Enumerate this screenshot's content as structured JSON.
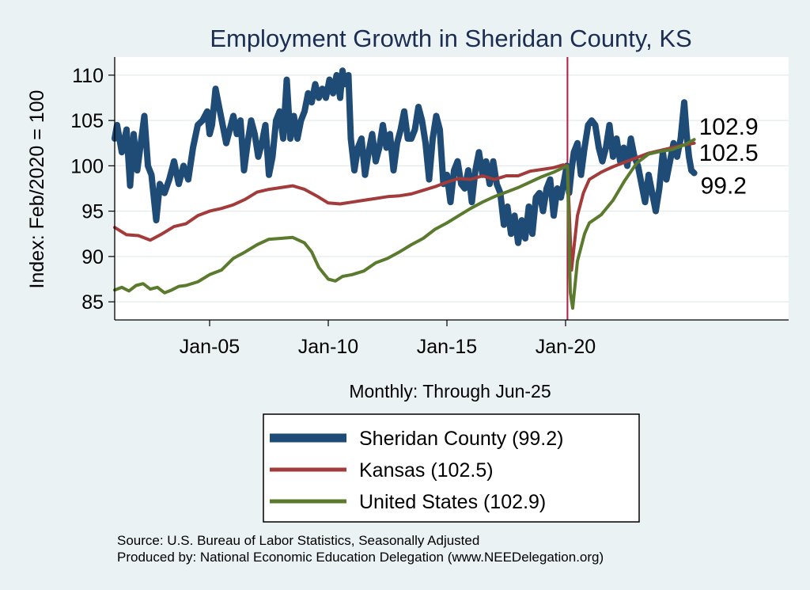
{
  "chart_data": {
    "type": "line",
    "title": "Employment Growth in Sheridan  County, KS",
    "ylabel": "Index: Feb/2020 = 100",
    "xlabel": "Monthly: Through Jun-25",
    "ylim": [
      83,
      112
    ],
    "xlim": [
      2001.0,
      2029.4
    ],
    "yticks": [
      85,
      90,
      95,
      100,
      105,
      110
    ],
    "yticklabels": [
      "85",
      "90",
      "95",
      "100",
      "105",
      "110"
    ],
    "xticks": [
      2005.0,
      2010.0,
      2015.0,
      2020.0
    ],
    "xticklabels": [
      "Jan-05",
      "Jan-10",
      "Jan-15",
      "Jan-20"
    ],
    "reference_line_x": 2020.08,
    "grid": true,
    "series": [
      {
        "name": "Sheridan  County",
        "legend_label": "Sheridan  County (99.2)",
        "color": "#1f4b77",
        "end_label": "99.2",
        "points": [
          [
            2001.0,
            103.0
          ],
          [
            2001.1,
            104.5
          ],
          [
            2001.3,
            101.5
          ],
          [
            2001.5,
            104.0
          ],
          [
            2001.65,
            97.8
          ],
          [
            2001.8,
            103.5
          ],
          [
            2001.95,
            99.5
          ],
          [
            2002.1,
            102.5
          ],
          [
            2002.25,
            105.5
          ],
          [
            2002.4,
            100.0
          ],
          [
            2002.55,
            99.0
          ],
          [
            2002.75,
            94.0
          ],
          [
            2002.9,
            98.0
          ],
          [
            2003.1,
            97.0
          ],
          [
            2003.3,
            98.5
          ],
          [
            2003.5,
            100.5
          ],
          [
            2003.7,
            98.0
          ],
          [
            2003.9,
            100.0
          ],
          [
            2004.1,
            98.5
          ],
          [
            2004.3,
            102.0
          ],
          [
            2004.5,
            104.5
          ],
          [
            2004.7,
            105.0
          ],
          [
            2004.9,
            106.0
          ],
          [
            2005.0,
            103.5
          ],
          [
            2005.1,
            104.5
          ],
          [
            2005.25,
            108.5
          ],
          [
            2005.4,
            106.5
          ],
          [
            2005.55,
            104.5
          ],
          [
            2005.7,
            102.5
          ],
          [
            2005.85,
            104.0
          ],
          [
            2006.0,
            105.5
          ],
          [
            2006.15,
            103.5
          ],
          [
            2006.3,
            105.0
          ],
          [
            2006.45,
            99.5
          ],
          [
            2006.6,
            102.5
          ],
          [
            2006.75,
            105.0
          ],
          [
            2006.9,
            103.5
          ],
          [
            2007.05,
            101.0
          ],
          [
            2007.2,
            102.5
          ],
          [
            2007.35,
            104.5
          ],
          [
            2007.5,
            99.0
          ],
          [
            2007.65,
            101.0
          ],
          [
            2007.8,
            105.0
          ],
          [
            2007.95,
            106.0
          ],
          [
            2008.1,
            103.0
          ],
          [
            2008.25,
            109.5
          ],
          [
            2008.4,
            103.0
          ],
          [
            2008.55,
            105.5
          ],
          [
            2008.7,
            103.0
          ],
          [
            2008.85,
            105.0
          ],
          [
            2009.0,
            106.0
          ],
          [
            2009.15,
            108.0
          ],
          [
            2009.3,
            107.0
          ],
          [
            2009.45,
            109.0
          ],
          [
            2009.6,
            107.5
          ],
          [
            2009.75,
            108.5
          ],
          [
            2009.9,
            107.5
          ],
          [
            2010.05,
            109.5
          ],
          [
            2010.2,
            108.0
          ],
          [
            2010.35,
            110.0
          ],
          [
            2010.5,
            107.5
          ],
          [
            2010.6,
            110.5
          ],
          [
            2010.7,
            109.0
          ],
          [
            2010.85,
            110.0
          ],
          [
            2010.95,
            103.0
          ],
          [
            2011.1,
            99.5
          ],
          [
            2011.25,
            102.0
          ],
          [
            2011.4,
            103.0
          ],
          [
            2011.55,
            99.0
          ],
          [
            2011.7,
            101.5
          ],
          [
            2011.85,
            103.5
          ],
          [
            2012.0,
            100.5
          ],
          [
            2012.15,
            102.0
          ],
          [
            2012.3,
            104.5
          ],
          [
            2012.45,
            102.0
          ],
          [
            2012.6,
            103.5
          ],
          [
            2012.75,
            99.5
          ],
          [
            2012.9,
            102.5
          ],
          [
            2013.05,
            104.0
          ],
          [
            2013.2,
            106.0
          ],
          [
            2013.35,
            103.0
          ],
          [
            2013.5,
            103.0
          ],
          [
            2013.65,
            104.0
          ],
          [
            2013.8,
            106.5
          ],
          [
            2013.95,
            105.0
          ],
          [
            2014.1,
            102.5
          ],
          [
            2014.25,
            98.5
          ],
          [
            2014.4,
            103.0
          ],
          [
            2014.55,
            105.5
          ],
          [
            2014.7,
            104.0
          ],
          [
            2014.85,
            98.0
          ],
          [
            2015.0,
            99.0
          ],
          [
            2015.15,
            96.0
          ],
          [
            2015.3,
            99.5
          ],
          [
            2015.45,
            100.5
          ],
          [
            2015.6,
            98.0
          ],
          [
            2015.75,
            97.5
          ],
          [
            2015.9,
            99.5
          ],
          [
            2016.05,
            96.0
          ],
          [
            2016.2,
            99.5
          ],
          [
            2016.35,
            101.5
          ],
          [
            2016.5,
            99.0
          ],
          [
            2016.65,
            100.5
          ],
          [
            2016.8,
            98.0
          ],
          [
            2016.95,
            100.5
          ],
          [
            2017.1,
            98.0
          ],
          [
            2017.25,
            97.0
          ],
          [
            2017.4,
            93.5
          ],
          [
            2017.55,
            95.5
          ],
          [
            2017.7,
            92.5
          ],
          [
            2017.85,
            94.5
          ],
          [
            2018.0,
            91.5
          ],
          [
            2018.15,
            94.0
          ],
          [
            2018.3,
            92.0
          ],
          [
            2018.45,
            95.5
          ],
          [
            2018.6,
            92.5
          ],
          [
            2018.75,
            96.5
          ],
          [
            2018.9,
            97.0
          ],
          [
            2019.05,
            95.0
          ],
          [
            2019.2,
            97.5
          ],
          [
            2019.35,
            98.5
          ],
          [
            2019.5,
            94.5
          ],
          [
            2019.65,
            97.5
          ],
          [
            2019.8,
            96.5
          ],
          [
            2019.95,
            98.5
          ],
          [
            2020.05,
            100.0
          ],
          [
            2020.15,
            97.0
          ],
          [
            2020.25,
            99.5
          ],
          [
            2020.35,
            101.5
          ],
          [
            2020.5,
            102.5
          ],
          [
            2020.65,
            99.0
          ],
          [
            2020.8,
            102.0
          ],
          [
            2020.95,
            104.5
          ],
          [
            2021.1,
            105.0
          ],
          [
            2021.25,
            104.5
          ],
          [
            2021.4,
            102.0
          ],
          [
            2021.55,
            100.5
          ],
          [
            2021.7,
            102.0
          ],
          [
            2021.85,
            104.5
          ],
          [
            2022.0,
            101.0
          ],
          [
            2022.15,
            103.0
          ],
          [
            2022.3,
            100.5
          ],
          [
            2022.45,
            102.0
          ],
          [
            2022.6,
            100.0
          ],
          [
            2022.75,
            103.0
          ],
          [
            2022.9,
            101.0
          ],
          [
            2023.05,
            100.0
          ],
          [
            2023.2,
            98.0
          ],
          [
            2023.35,
            96.0
          ],
          [
            2023.5,
            99.0
          ],
          [
            2023.65,
            97.0
          ],
          [
            2023.8,
            95.0
          ],
          [
            2023.95,
            97.5
          ],
          [
            2024.1,
            101.5
          ],
          [
            2024.25,
            98.5
          ],
          [
            2024.4,
            100.5
          ],
          [
            2024.55,
            102.5
          ],
          [
            2024.7,
            101.0
          ],
          [
            2024.85,
            103.0
          ],
          [
            2025.0,
            107.0
          ],
          [
            2025.1,
            103.5
          ],
          [
            2025.2,
            101.0
          ],
          [
            2025.3,
            99.5
          ],
          [
            2025.42,
            99.2
          ]
        ]
      },
      {
        "name": "Kansas",
        "legend_label": "Kansas (102.5)",
        "color": "#a33b3b",
        "end_label": "102.5",
        "points": [
          [
            2001.0,
            93.2
          ],
          [
            2001.5,
            92.4
          ],
          [
            2002.0,
            92.3
          ],
          [
            2002.5,
            91.8
          ],
          [
            2003.0,
            92.5
          ],
          [
            2003.5,
            93.3
          ],
          [
            2004.0,
            93.6
          ],
          [
            2004.5,
            94.5
          ],
          [
            2005.0,
            95.0
          ],
          [
            2005.5,
            95.3
          ],
          [
            2006.0,
            95.7
          ],
          [
            2006.5,
            96.3
          ],
          [
            2007.0,
            97.1
          ],
          [
            2007.5,
            97.4
          ],
          [
            2008.0,
            97.6
          ],
          [
            2008.5,
            97.8
          ],
          [
            2009.0,
            97.4
          ],
          [
            2009.5,
            96.7
          ],
          [
            2010.0,
            95.9
          ],
          [
            2010.5,
            95.8
          ],
          [
            2011.0,
            96.0
          ],
          [
            2011.5,
            96.2
          ],
          [
            2012.0,
            96.4
          ],
          [
            2012.5,
            96.6
          ],
          [
            2013.0,
            96.7
          ],
          [
            2013.5,
            96.9
          ],
          [
            2014.0,
            97.3
          ],
          [
            2014.5,
            97.7
          ],
          [
            2015.0,
            98.2
          ],
          [
            2015.5,
            98.6
          ],
          [
            2016.0,
            98.5
          ],
          [
            2016.5,
            98.9
          ],
          [
            2017.0,
            98.5
          ],
          [
            2017.5,
            98.9
          ],
          [
            2018.0,
            98.9
          ],
          [
            2018.5,
            99.4
          ],
          [
            2019.0,
            99.6
          ],
          [
            2019.5,
            99.8
          ],
          [
            2019.9,
            100.1
          ],
          [
            2020.08,
            100.0
          ],
          [
            2020.25,
            88.5
          ],
          [
            2020.5,
            94.5
          ],
          [
            2020.75,
            97.0
          ],
          [
            2021.0,
            98.5
          ],
          [
            2021.5,
            99.3
          ],
          [
            2022.0,
            99.9
          ],
          [
            2022.5,
            100.4
          ],
          [
            2023.0,
            100.9
          ],
          [
            2023.5,
            101.4
          ],
          [
            2024.0,
            101.7
          ],
          [
            2024.5,
            102.0
          ],
          [
            2025.0,
            102.3
          ],
          [
            2025.42,
            102.5
          ]
        ]
      },
      {
        "name": "United States",
        "legend_label": "United States (102.9)",
        "color": "#5a7a2e",
        "end_label": "102.9",
        "points": [
          [
            2001.0,
            86.3
          ],
          [
            2001.3,
            86.6
          ],
          [
            2001.6,
            86.2
          ],
          [
            2001.9,
            86.8
          ],
          [
            2002.2,
            87.0
          ],
          [
            2002.5,
            86.4
          ],
          [
            2002.8,
            86.6
          ],
          [
            2003.1,
            86.0
          ],
          [
            2003.4,
            86.3
          ],
          [
            2003.7,
            86.7
          ],
          [
            2004.0,
            86.8
          ],
          [
            2004.5,
            87.2
          ],
          [
            2005.0,
            88.0
          ],
          [
            2005.5,
            88.5
          ],
          [
            2006.0,
            89.8
          ],
          [
            2006.5,
            90.5
          ],
          [
            2007.0,
            91.3
          ],
          [
            2007.5,
            91.9
          ],
          [
            2008.0,
            92.0
          ],
          [
            2008.5,
            92.1
          ],
          [
            2009.0,
            91.5
          ],
          [
            2009.3,
            90.5
          ],
          [
            2009.6,
            88.8
          ],
          [
            2010.0,
            87.5
          ],
          [
            2010.3,
            87.3
          ],
          [
            2010.6,
            87.8
          ],
          [
            2011.0,
            88.0
          ],
          [
            2011.5,
            88.4
          ],
          [
            2012.0,
            89.3
          ],
          [
            2012.5,
            89.8
          ],
          [
            2013.0,
            90.5
          ],
          [
            2013.5,
            91.3
          ],
          [
            2014.0,
            92.0
          ],
          [
            2014.5,
            93.0
          ],
          [
            2015.0,
            93.7
          ],
          [
            2015.5,
            94.5
          ],
          [
            2016.0,
            95.3
          ],
          [
            2016.5,
            96.0
          ],
          [
            2017.0,
            96.6
          ],
          [
            2017.5,
            97.1
          ],
          [
            2018.0,
            97.6
          ],
          [
            2018.5,
            98.2
          ],
          [
            2019.0,
            98.8
          ],
          [
            2019.5,
            99.3
          ],
          [
            2019.9,
            99.8
          ],
          [
            2020.08,
            100.0
          ],
          [
            2020.2,
            86.0
          ],
          [
            2020.3,
            84.3
          ],
          [
            2020.5,
            89.5
          ],
          [
            2020.8,
            92.5
          ],
          [
            2021.0,
            93.7
          ],
          [
            2021.5,
            94.6
          ],
          [
            2022.0,
            96.2
          ],
          [
            2022.5,
            98.4
          ],
          [
            2023.0,
            100.3
          ],
          [
            2023.5,
            101.3
          ],
          [
            2024.0,
            101.6
          ],
          [
            2024.5,
            101.8
          ],
          [
            2025.0,
            102.3
          ],
          [
            2025.42,
            102.9
          ]
        ]
      }
    ]
  },
  "source_note": "Source: U.S. Bureau of Labor Statistics, Seasonally Adjusted",
  "producer_note": "Produced by: National Economic Education Delegation (www.NEEDelegation.org)"
}
